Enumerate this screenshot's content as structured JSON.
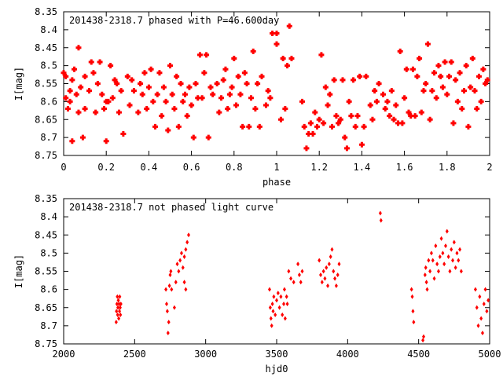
{
  "chart_data": [
    {
      "type": "scatter",
      "title": "201438-2318.7 phased with P=46.600day",
      "xlabel": "phase",
      "ylabel": "I[mag]",
      "xlim": [
        0,
        2
      ],
      "ylim": [
        8.75,
        8.35
      ],
      "y_inverted": true,
      "xticks": [
        "0",
        "0.2",
        "0.4",
        "0.6",
        "0.8",
        "1",
        "1.2",
        "1.4",
        "1.6",
        "1.8",
        "2"
      ],
      "yticks": [
        "8.35",
        "8.4",
        "8.45",
        "8.5",
        "8.55",
        "8.6",
        "8.65",
        "8.7",
        "8.75"
      ],
      "marker_color": "#ff0000",
      "points": [
        [
          0.0,
          8.52
        ],
        [
          0.01,
          8.53
        ],
        [
          0.01,
          8.59
        ],
        [
          0.02,
          8.62
        ],
        [
          0.03,
          8.57
        ],
        [
          0.03,
          8.6
        ],
        [
          0.04,
          8.71
        ],
        [
          0.04,
          8.54
        ],
        [
          0.05,
          8.51
        ],
        [
          0.06,
          8.58
        ],
        [
          0.07,
          8.45
        ],
        [
          0.07,
          8.63
        ],
        [
          0.08,
          8.56
        ],
        [
          0.09,
          8.7
        ],
        [
          0.1,
          8.53
        ],
        [
          0.1,
          8.62
        ],
        [
          0.12,
          8.57
        ],
        [
          0.13,
          8.49
        ],
        [
          0.14,
          8.52
        ],
        [
          0.15,
          8.63
        ],
        [
          0.16,
          8.55
        ],
        [
          0.17,
          8.49
        ],
        [
          0.18,
          8.58
        ],
        [
          0.19,
          8.62
        ],
        [
          0.2,
          8.71
        ],
        [
          0.2,
          8.6
        ],
        [
          0.21,
          8.6
        ],
        [
          0.22,
          8.5
        ],
        [
          0.23,
          8.59
        ],
        [
          0.24,
          8.54
        ],
        [
          0.25,
          8.55
        ],
        [
          0.26,
          8.63
        ],
        [
          0.27,
          8.57
        ],
        [
          0.28,
          8.69
        ],
        [
          0.3,
          8.53
        ],
        [
          0.31,
          8.61
        ],
        [
          0.32,
          8.54
        ],
        [
          0.33,
          8.57
        ],
        [
          0.35,
          8.63
        ],
        [
          0.36,
          8.55
        ],
        [
          0.37,
          8.58
        ],
        [
          0.38,
          8.52
        ],
        [
          0.39,
          8.62
        ],
        [
          0.4,
          8.56
        ],
        [
          0.41,
          8.51
        ],
        [
          0.42,
          8.6
        ],
        [
          0.43,
          8.67
        ],
        [
          0.44,
          8.58
        ],
        [
          0.45,
          8.52
        ],
        [
          0.46,
          8.64
        ],
        [
          0.47,
          8.56
        ],
        [
          0.48,
          8.6
        ],
        [
          0.49,
          8.68
        ],
        [
          0.5,
          8.5
        ],
        [
          0.51,
          8.58
        ],
        [
          0.52,
          8.62
        ],
        [
          0.53,
          8.53
        ],
        [
          0.54,
          8.67
        ],
        [
          0.55,
          8.55
        ],
        [
          0.56,
          8.6
        ],
        [
          0.57,
          8.58
        ],
        [
          0.58,
          8.64
        ],
        [
          0.59,
          8.56
        ],
        [
          0.6,
          8.61
        ],
        [
          0.61,
          8.7
        ],
        [
          0.62,
          8.55
        ],
        [
          0.63,
          8.59
        ],
        [
          0.64,
          8.47
        ],
        [
          0.65,
          8.59
        ],
        [
          0.66,
          8.52
        ],
        [
          0.67,
          8.47
        ],
        [
          0.68,
          8.7
        ],
        [
          0.69,
          8.56
        ],
        [
          0.7,
          8.58
        ],
        [
          0.72,
          8.55
        ],
        [
          0.73,
          8.63
        ],
        [
          0.74,
          8.59
        ],
        [
          0.75,
          8.54
        ],
        [
          0.76,
          8.51
        ],
        [
          0.77,
          8.62
        ],
        [
          0.78,
          8.58
        ],
        [
          0.79,
          8.56
        ],
        [
          0.8,
          8.48
        ],
        [
          0.81,
          8.61
        ],
        [
          0.82,
          8.53
        ],
        [
          0.83,
          8.58
        ],
        [
          0.84,
          8.67
        ],
        [
          0.85,
          8.52
        ],
        [
          0.86,
          8.55
        ],
        [
          0.87,
          8.67
        ],
        [
          0.88,
          8.59
        ],
        [
          0.89,
          8.46
        ],
        [
          0.9,
          8.62
        ],
        [
          0.91,
          8.55
        ],
        [
          0.92,
          8.67
        ],
        [
          0.93,
          8.53
        ],
        [
          0.95,
          8.61
        ],
        [
          0.96,
          8.57
        ],
        [
          0.97,
          8.59
        ],
        [
          0.98,
          8.41
        ],
        [
          1.0,
          8.41
        ],
        [
          1.0,
          8.44
        ],
        [
          1.02,
          8.65
        ],
        [
          1.03,
          8.48
        ],
        [
          1.04,
          8.62
        ],
        [
          1.05,
          8.5
        ],
        [
          1.06,
          8.39
        ],
        [
          1.07,
          8.48
        ],
        [
          1.12,
          8.6
        ],
        [
          1.13,
          8.67
        ],
        [
          1.14,
          8.73
        ],
        [
          1.15,
          8.69
        ],
        [
          1.16,
          8.66
        ],
        [
          1.17,
          8.69
        ],
        [
          1.18,
          8.63
        ],
        [
          1.19,
          8.67
        ],
        [
          1.2,
          8.65
        ],
        [
          1.21,
          8.47
        ],
        [
          1.22,
          8.66
        ],
        [
          1.23,
          8.56
        ],
        [
          1.24,
          8.61
        ],
        [
          1.25,
          8.58
        ],
        [
          1.26,
          8.67
        ],
        [
          1.27,
          8.54
        ],
        [
          1.28,
          8.64
        ],
        [
          1.29,
          8.66
        ],
        [
          1.3,
          8.65
        ],
        [
          1.31,
          8.54
        ],
        [
          1.32,
          8.7
        ],
        [
          1.33,
          8.73
        ],
        [
          1.34,
          8.6
        ],
        [
          1.35,
          8.64
        ],
        [
          1.36,
          8.54
        ],
        [
          1.37,
          8.67
        ],
        [
          1.38,
          8.64
        ],
        [
          1.39,
          8.53
        ],
        [
          1.4,
          8.72
        ],
        [
          1.41,
          8.67
        ],
        [
          1.42,
          8.53
        ],
        [
          1.44,
          8.61
        ],
        [
          1.45,
          8.65
        ],
        [
          1.46,
          8.57
        ],
        [
          1.47,
          8.6
        ],
        [
          1.48,
          8.55
        ],
        [
          1.5,
          8.58
        ],
        [
          1.51,
          8.62
        ],
        [
          1.52,
          8.6
        ],
        [
          1.53,
          8.64
        ],
        [
          1.54,
          8.57
        ],
        [
          1.55,
          8.65
        ],
        [
          1.56,
          8.61
        ],
        [
          1.57,
          8.66
        ],
        [
          1.58,
          8.46
        ],
        [
          1.59,
          8.66
        ],
        [
          1.6,
          8.59
        ],
        [
          1.61,
          8.51
        ],
        [
          1.62,
          8.63
        ],
        [
          1.63,
          8.64
        ],
        [
          1.64,
          8.51
        ],
        [
          1.65,
          8.64
        ],
        [
          1.66,
          8.53
        ],
        [
          1.67,
          8.48
        ],
        [
          1.68,
          8.63
        ],
        [
          1.69,
          8.57
        ],
        [
          1.7,
          8.55
        ],
        [
          1.71,
          8.44
        ],
        [
          1.72,
          8.65
        ],
        [
          1.73,
          8.57
        ],
        [
          1.74,
          8.52
        ],
        [
          1.75,
          8.59
        ],
        [
          1.76,
          8.5
        ],
        [
          1.77,
          8.53
        ],
        [
          1.78,
          8.56
        ],
        [
          1.79,
          8.49
        ],
        [
          1.8,
          8.58
        ],
        [
          1.81,
          8.53
        ],
        [
          1.82,
          8.49
        ],
        [
          1.83,
          8.66
        ],
        [
          1.84,
          8.54
        ],
        [
          1.85,
          8.6
        ],
        [
          1.86,
          8.52
        ],
        [
          1.87,
          8.62
        ],
        [
          1.88,
          8.57
        ],
        [
          1.89,
          8.5
        ],
        [
          1.9,
          8.67
        ],
        [
          1.91,
          8.56
        ],
        [
          1.92,
          8.48
        ],
        [
          1.93,
          8.57
        ],
        [
          1.94,
          8.62
        ],
        [
          1.95,
          8.53
        ],
        [
          1.96,
          8.6
        ],
        [
          1.97,
          8.51
        ],
        [
          1.98,
          8.55
        ],
        [
          1.99,
          8.54
        ]
      ]
    },
    {
      "type": "scatter",
      "title": "201438-2318.7 not phased light curve",
      "xlabel": "hjd0",
      "ylabel": "I[mag]",
      "xlim": [
        2000,
        5000
      ],
      "ylim": [
        8.75,
        8.35
      ],
      "y_inverted": true,
      "xticks": [
        "2000",
        "2500",
        "3000",
        "3500",
        "4000",
        "4500",
        "5000"
      ],
      "yticks": [
        "8.35",
        "8.4",
        "8.45",
        "8.5",
        "8.55",
        "8.6",
        "8.65",
        "8.7",
        "8.75"
      ],
      "marker_color": "#ff0000",
      "points": [
        [
          2370,
          8.69
        ],
        [
          2372,
          8.66
        ],
        [
          2375,
          8.64
        ],
        [
          2378,
          8.62
        ],
        [
          2380,
          8.67
        ],
        [
          2382,
          8.65
        ],
        [
          2385,
          8.63
        ],
        [
          2388,
          8.68
        ],
        [
          2390,
          8.64
        ],
        [
          2393,
          8.66
        ],
        [
          2395,
          8.62
        ],
        [
          2398,
          8.65
        ],
        [
          2400,
          8.67
        ],
        [
          2403,
          8.64
        ],
        [
          2720,
          8.6
        ],
        [
          2725,
          8.64
        ],
        [
          2730,
          8.66
        ],
        [
          2735,
          8.72
        ],
        [
          2740,
          8.69
        ],
        [
          2745,
          8.59
        ],
        [
          2750,
          8.56
        ],
        [
          2755,
          8.55
        ],
        [
          2760,
          8.6
        ],
        [
          2780,
          8.65
        ],
        [
          2790,
          8.58
        ],
        [
          2800,
          8.53
        ],
        [
          2810,
          8.55
        ],
        [
          2820,
          8.52
        ],
        [
          2830,
          8.5
        ],
        [
          2840,
          8.54
        ],
        [
          2850,
          8.51
        ],
        [
          2860,
          8.49
        ],
        [
          2870,
          8.47
        ],
        [
          2880,
          8.45
        ],
        [
          2850,
          8.58
        ],
        [
          2860,
          8.6
        ],
        [
          3450,
          8.6
        ],
        [
          3455,
          8.65
        ],
        [
          3460,
          8.68
        ],
        [
          3465,
          8.7
        ],
        [
          3470,
          8.64
        ],
        [
          3475,
          8.66
        ],
        [
          3480,
          8.62
        ],
        [
          3490,
          8.67
        ],
        [
          3500,
          8.63
        ],
        [
          3510,
          8.61
        ],
        [
          3520,
          8.65
        ],
        [
          3530,
          8.62
        ],
        [
          3540,
          8.67
        ],
        [
          3550,
          8.64
        ],
        [
          3555,
          8.6
        ],
        [
          3560,
          8.68
        ],
        [
          3570,
          8.62
        ],
        [
          3575,
          8.64
        ],
        [
          3585,
          8.55
        ],
        [
          3600,
          8.57
        ],
        [
          3620,
          8.58
        ],
        [
          3650,
          8.53
        ],
        [
          3660,
          8.56
        ],
        [
          3670,
          8.58
        ],
        [
          3680,
          8.55
        ],
        [
          3800,
          8.52
        ],
        [
          3810,
          8.56
        ],
        [
          3820,
          8.58
        ],
        [
          3830,
          8.55
        ],
        [
          3840,
          8.57
        ],
        [
          3850,
          8.54
        ],
        [
          3860,
          8.59
        ],
        [
          3870,
          8.53
        ],
        [
          3880,
          8.51
        ],
        [
          3890,
          8.49
        ],
        [
          3900,
          8.55
        ],
        [
          3910,
          8.57
        ],
        [
          3920,
          8.59
        ],
        [
          3930,
          8.56
        ],
        [
          3940,
          8.53
        ],
        [
          4230,
          8.39
        ],
        [
          4235,
          8.41
        ],
        [
          4450,
          8.6
        ],
        [
          4455,
          8.62
        ],
        [
          4460,
          8.66
        ],
        [
          4465,
          8.69
        ],
        [
          4530,
          8.74
        ],
        [
          4535,
          8.73
        ],
        [
          4545,
          8.56
        ],
        [
          4550,
          8.54
        ],
        [
          4555,
          8.58
        ],
        [
          4560,
          8.6
        ],
        [
          4570,
          8.52
        ],
        [
          4580,
          8.55
        ],
        [
          4590,
          8.5
        ],
        [
          4600,
          8.52
        ],
        [
          4610,
          8.57
        ],
        [
          4620,
          8.48
        ],
        [
          4630,
          8.53
        ],
        [
          4640,
          8.55
        ],
        [
          4650,
          8.51
        ],
        [
          4660,
          8.46
        ],
        [
          4670,
          8.5
        ],
        [
          4680,
          8.53
        ],
        [
          4690,
          8.48
        ],
        [
          4700,
          8.44
        ],
        [
          4710,
          8.51
        ],
        [
          4720,
          8.55
        ],
        [
          4730,
          8.49
        ],
        [
          4740,
          8.52
        ],
        [
          4750,
          8.47
        ],
        [
          4760,
          8.54
        ],
        [
          4770,
          8.5
        ],
        [
          4780,
          8.52
        ],
        [
          4790,
          8.49
        ],
        [
          4800,
          8.55
        ],
        [
          4900,
          8.6
        ],
        [
          4910,
          8.65
        ],
        [
          4920,
          8.7
        ],
        [
          4930,
          8.62
        ],
        [
          4940,
          8.68
        ],
        [
          4950,
          8.72
        ],
        [
          4960,
          8.64
        ],
        [
          4970,
          8.6
        ],
        [
          4980,
          8.66
        ],
        [
          4990,
          8.63
        ]
      ]
    }
  ]
}
